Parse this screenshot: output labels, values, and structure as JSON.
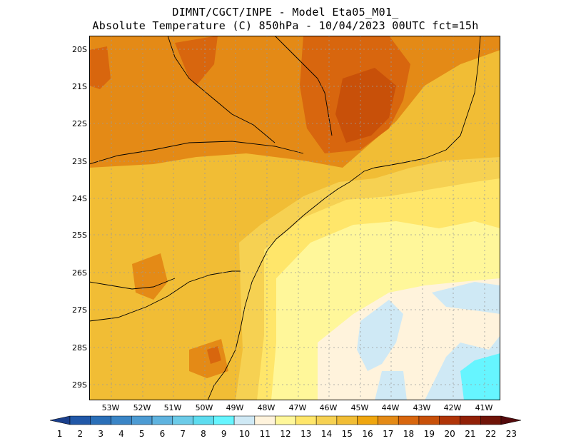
{
  "title": {
    "line1": "DIMNT/CGCT/INPE -  Model Eta05_M01_",
    "line2": "Absolute Temperature (C) 850hPa -  10/04/2023 00UTC fct=15h"
  },
  "lat_labels": [
    "20S",
    "21S",
    "22S",
    "23S",
    "24S",
    "25S",
    "26S",
    "27S",
    "28S",
    "29S"
  ],
  "lon_labels": [
    "53W",
    "52W",
    "51W",
    "50W",
    "49W",
    "48W",
    "47W",
    "46W",
    "45W",
    "44W",
    "43W",
    "42W",
    "41W"
  ],
  "colorbar": {
    "labels": [
      "1",
      "2",
      "3",
      "4",
      "5",
      "6",
      "7",
      "8",
      "9",
      "10",
      "11",
      "12",
      "13",
      "14",
      "15",
      "16",
      "17",
      "18",
      "19",
      "20",
      "21",
      "22",
      "23"
    ],
    "colors": [
      "#1a3f8c",
      "#2158a8",
      "#2a6fb8",
      "#3a85c6",
      "#4c9bd3",
      "#5fb3df",
      "#6ccbe8",
      "#5ddcef",
      "#66f5ff",
      "#cfe9f5",
      "#fff3dc",
      "#fff79a",
      "#ffe66a",
      "#f6d152",
      "#f1bd35",
      "#efa60f",
      "#e48a16",
      "#d8660e",
      "#c85009",
      "#b03408",
      "#922007",
      "#701408",
      "#540a0c"
    ]
  },
  "map": {
    "lon_range": [
      -53.7,
      -40.5
    ],
    "lat_range": [
      -29.6,
      -19.8
    ],
    "grid": true
  }
}
